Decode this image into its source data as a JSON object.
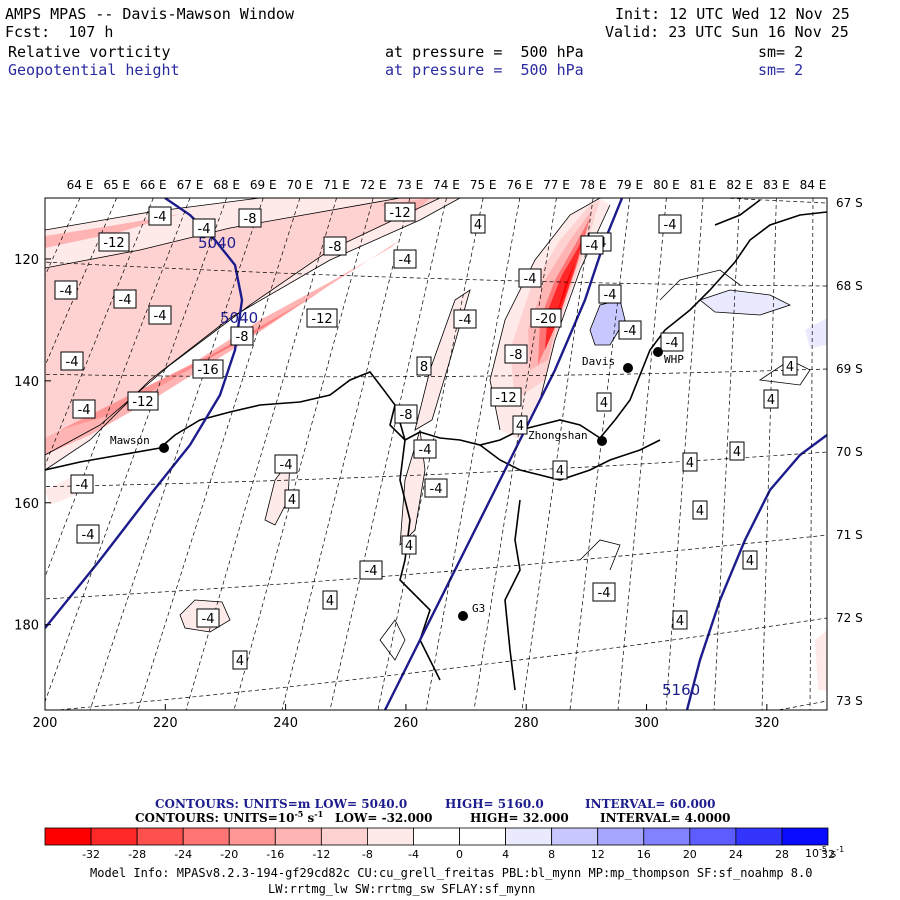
{
  "header": {
    "title": "AMPS MPAS -- Davis-Mawson Window",
    "forecast": "Fcst:  107 h",
    "init": "Init: 12 UTC Wed 12 Nov 25",
    "valid": "Valid: 23 UTC Sun 16 Nov 25",
    "fields": [
      {
        "name": "Relative vorticity",
        "level": "at pressure =  500 hPa",
        "smooth": "sm= 2"
      },
      {
        "name": "Geopotential height",
        "level": "at pressure =  500 hPa",
        "smooth": "sm= 2"
      }
    ]
  },
  "chart_data": {
    "type": "contour-map",
    "title": "AMPS MPAS -- Davis-Mawson Window",
    "x_axis": {
      "ticks": [
        200,
        220,
        240,
        260,
        280,
        300,
        320
      ],
      "range": [
        200,
        330
      ]
    },
    "y_axis": {
      "ticks": [
        120,
        140,
        160,
        180
      ],
      "range": [
        110,
        194
      ],
      "direction": "down"
    },
    "longitude_labels": [
      "64 E",
      "65 E",
      "66 E",
      "67 E",
      "68 E",
      "69 E",
      "70 E",
      "71 E",
      "72 E",
      "73 E",
      "74 E",
      "75 E",
      "76 E",
      "77 E",
      "78 E",
      "79 E",
      "80 E",
      "81 E",
      "82 E",
      "83 E",
      "84 E"
    ],
    "latitude_labels": [
      "67 S",
      "68 S",
      "69 S",
      "70 S",
      "71 S",
      "72 S",
      "73 S"
    ],
    "height_contours": {
      "units": "m",
      "low": "5040.0",
      "high": "5160.0",
      "interval": "60.000",
      "labels": [
        "5040",
        "5040",
        "5160"
      ]
    },
    "vorticity": {
      "units": "10-5 s-1",
      "low": "-32.000",
      "high": "32.000",
      "interval": "4.0000",
      "box_labels": [
        -4,
        -4,
        -8,
        -12,
        -12,
        -8,
        -4,
        -4,
        -4,
        -4,
        -12,
        -4,
        -8,
        -16,
        -4,
        -12,
        -4,
        -8,
        -4,
        -4,
        -20,
        -8,
        -12,
        -4,
        -4,
        -4,
        -4,
        -4,
        -4,
        -4,
        -4,
        -4,
        -4,
        -4,
        -4,
        -4,
        8,
        4,
        4,
        4,
        4,
        4,
        4,
        4,
        4,
        4,
        4,
        4,
        4,
        4,
        4,
        4
      ]
    },
    "stations": [
      "Mawson",
      "Davis",
      "Zhongshan",
      "WHP",
      "G3"
    ]
  },
  "contour_legend": {
    "line1": {
      "label": "CONTOURS:  UNITS=m  LOW=  5040.0",
      "high": "HIGH=  5160.0",
      "interval": "INTERVAL=   60.000"
    },
    "line2": {
      "label": "CONTOURS:  UNITS=10",
      "unit_exp": "-5",
      "unit_tail": " s",
      "unit_exp2": "-1",
      "low": "LOW=  -32.000",
      "high": "HIGH=  32.000",
      "interval": "INTERVAL=   4.0000"
    }
  },
  "colorbar": {
    "ticks": [
      "-32",
      "-28",
      "-24",
      "-20",
      "-16",
      "-12",
      "-8",
      "-4",
      "0",
      "4",
      "8",
      "12",
      "16",
      "20",
      "24",
      "28",
      "32"
    ],
    "colors": [
      "#ff0000",
      "#ff2828",
      "#ff5050",
      "#ff7474",
      "#ff9696",
      "#ffb4b4",
      "#ffd2d2",
      "#ffeaea",
      "#ffffff",
      "#ffffff",
      "#eaeaff",
      "#c8c8ff",
      "#a6a6ff",
      "#8282ff",
      "#5c5cff",
      "#3434ff",
      "#0a0aff"
    ],
    "unit_base": "10",
    "unit_exp": "-5",
    "unit_tail": " s",
    "unit_exp2": "-1"
  },
  "model_info": {
    "line1": "Model Info: MPASv8.2.3-194-gf29cd82c CU:cu_grell_freitas PBL:bl_mynn MP:mp_thompson SF:sf_noahmp 8.0",
    "line2": "LW:rrtmg_lw SW:rrtmg_sw SFLAY:sf_mynn"
  }
}
